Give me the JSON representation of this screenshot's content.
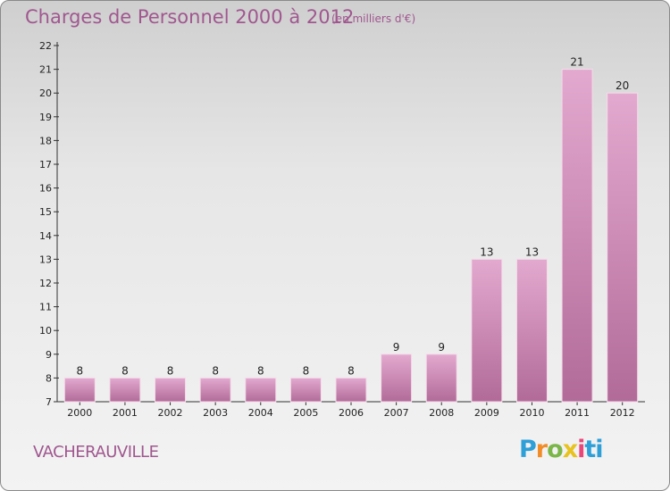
{
  "header": {
    "title": "Charges de Personnel 2000 à 2012",
    "unit": "(en milliers d'€)"
  },
  "footer": {
    "place": "VACHERAUVILLE",
    "logo": [
      "P",
      "r",
      "o",
      "x",
      "i",
      "ti"
    ]
  },
  "colors": {
    "bar_top": "#e3a9cf",
    "bar_bottom": "#b26b99",
    "text_accent": "#a0578f"
  },
  "chart_data": {
    "type": "bar",
    "title": "Charges de Personnel 2000 à 2012",
    "subtitle": "(en milliers d'€)",
    "categories": [
      "2000",
      "2001",
      "2002",
      "2003",
      "2004",
      "2005",
      "2006",
      "2007",
      "2008",
      "2009",
      "2010",
      "2011",
      "2012"
    ],
    "values": [
      8,
      8,
      8,
      8,
      8,
      8,
      8,
      9,
      9,
      13,
      13,
      21,
      20
    ],
    "xlabel": "",
    "ylabel": "",
    "ylim": [
      7,
      22
    ],
    "yticks": [
      7,
      8,
      9,
      10,
      11,
      12,
      13,
      14,
      15,
      16,
      17,
      18,
      19,
      20,
      21,
      22
    ],
    "grid": false
  }
}
